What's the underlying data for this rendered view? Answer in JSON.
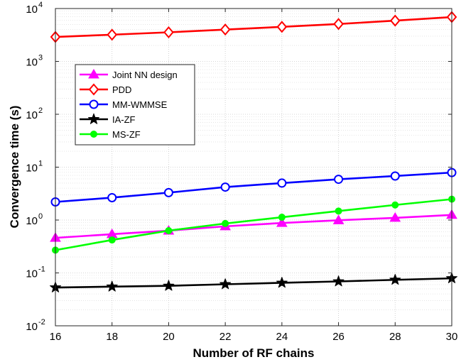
{
  "chart_data": {
    "type": "line",
    "xlabel": "Number of RF chains",
    "ylabel": "Convergence time (s)",
    "x": [
      16,
      18,
      20,
      22,
      24,
      26,
      28,
      30
    ],
    "xlim": [
      16,
      30
    ],
    "ylim": [
      0.01,
      10000
    ],
    "yscale": "log",
    "grid": true,
    "legend_position": "upper-left",
    "xticks": [
      "16",
      "18",
      "20",
      "22",
      "24",
      "26",
      "28",
      "30"
    ],
    "yticks": [
      {
        "base": "10",
        "exp": "-2"
      },
      {
        "base": "10",
        "exp": "-1"
      },
      {
        "base": "10",
        "exp": "0"
      },
      {
        "base": "10",
        "exp": "1"
      },
      {
        "base": "10",
        "exp": "2"
      },
      {
        "base": "10",
        "exp": "3"
      },
      {
        "base": "10",
        "exp": "4"
      }
    ],
    "series": [
      {
        "name": "Joint NN design",
        "color": "#ff00ff",
        "marker": "triangle",
        "values": [
          0.46,
          0.54,
          0.63,
          0.76,
          0.88,
          0.99,
          1.1,
          1.25
        ]
      },
      {
        "name": "PDD",
        "color": "#ff0000",
        "marker": "diamond",
        "values": [
          2900,
          3200,
          3550,
          4000,
          4500,
          5100,
          5900,
          6900
        ]
      },
      {
        "name": "MM-WMMSE",
        "color": "#0000ff",
        "marker": "circle",
        "values": [
          2.2,
          2.65,
          3.3,
          4.2,
          5.0,
          5.9,
          6.8,
          7.9
        ]
      },
      {
        "name": "IA-ZF",
        "color": "#000000",
        "marker": "star",
        "values": [
          0.053,
          0.055,
          0.057,
          0.061,
          0.065,
          0.069,
          0.074,
          0.079
        ]
      },
      {
        "name": "MS-ZF",
        "color": "#00ff00",
        "marker": "dot",
        "values": [
          0.27,
          0.42,
          0.63,
          0.86,
          1.13,
          1.48,
          1.93,
          2.48
        ]
      }
    ]
  }
}
